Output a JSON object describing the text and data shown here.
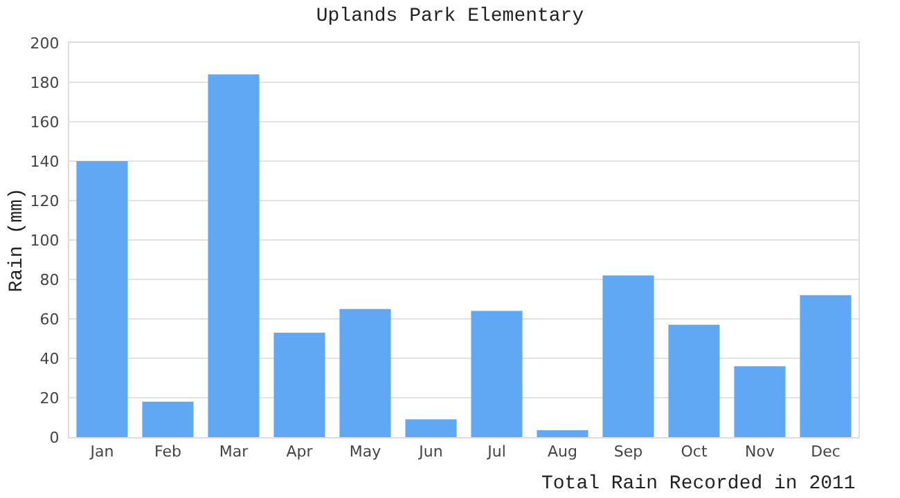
{
  "chart_data": {
    "type": "bar",
    "title": "Uplands Park Elementary",
    "xlabel": "Total Rain Recorded in 2011",
    "ylabel": "Rain (mm)",
    "categories": [
      "Jan",
      "Feb",
      "Mar",
      "Apr",
      "May",
      "Jun",
      "Jul",
      "Aug",
      "Sep",
      "Oct",
      "Nov",
      "Dec"
    ],
    "values": [
      140,
      18,
      184,
      53,
      65,
      9,
      64,
      3.5,
      82,
      57,
      36,
      72
    ],
    "color": "#60a8f4",
    "ylim": [
      0,
      200
    ],
    "yticks": [
      0,
      20,
      40,
      60,
      80,
      100,
      120,
      140,
      160,
      180,
      200
    ],
    "grid": "y"
  }
}
